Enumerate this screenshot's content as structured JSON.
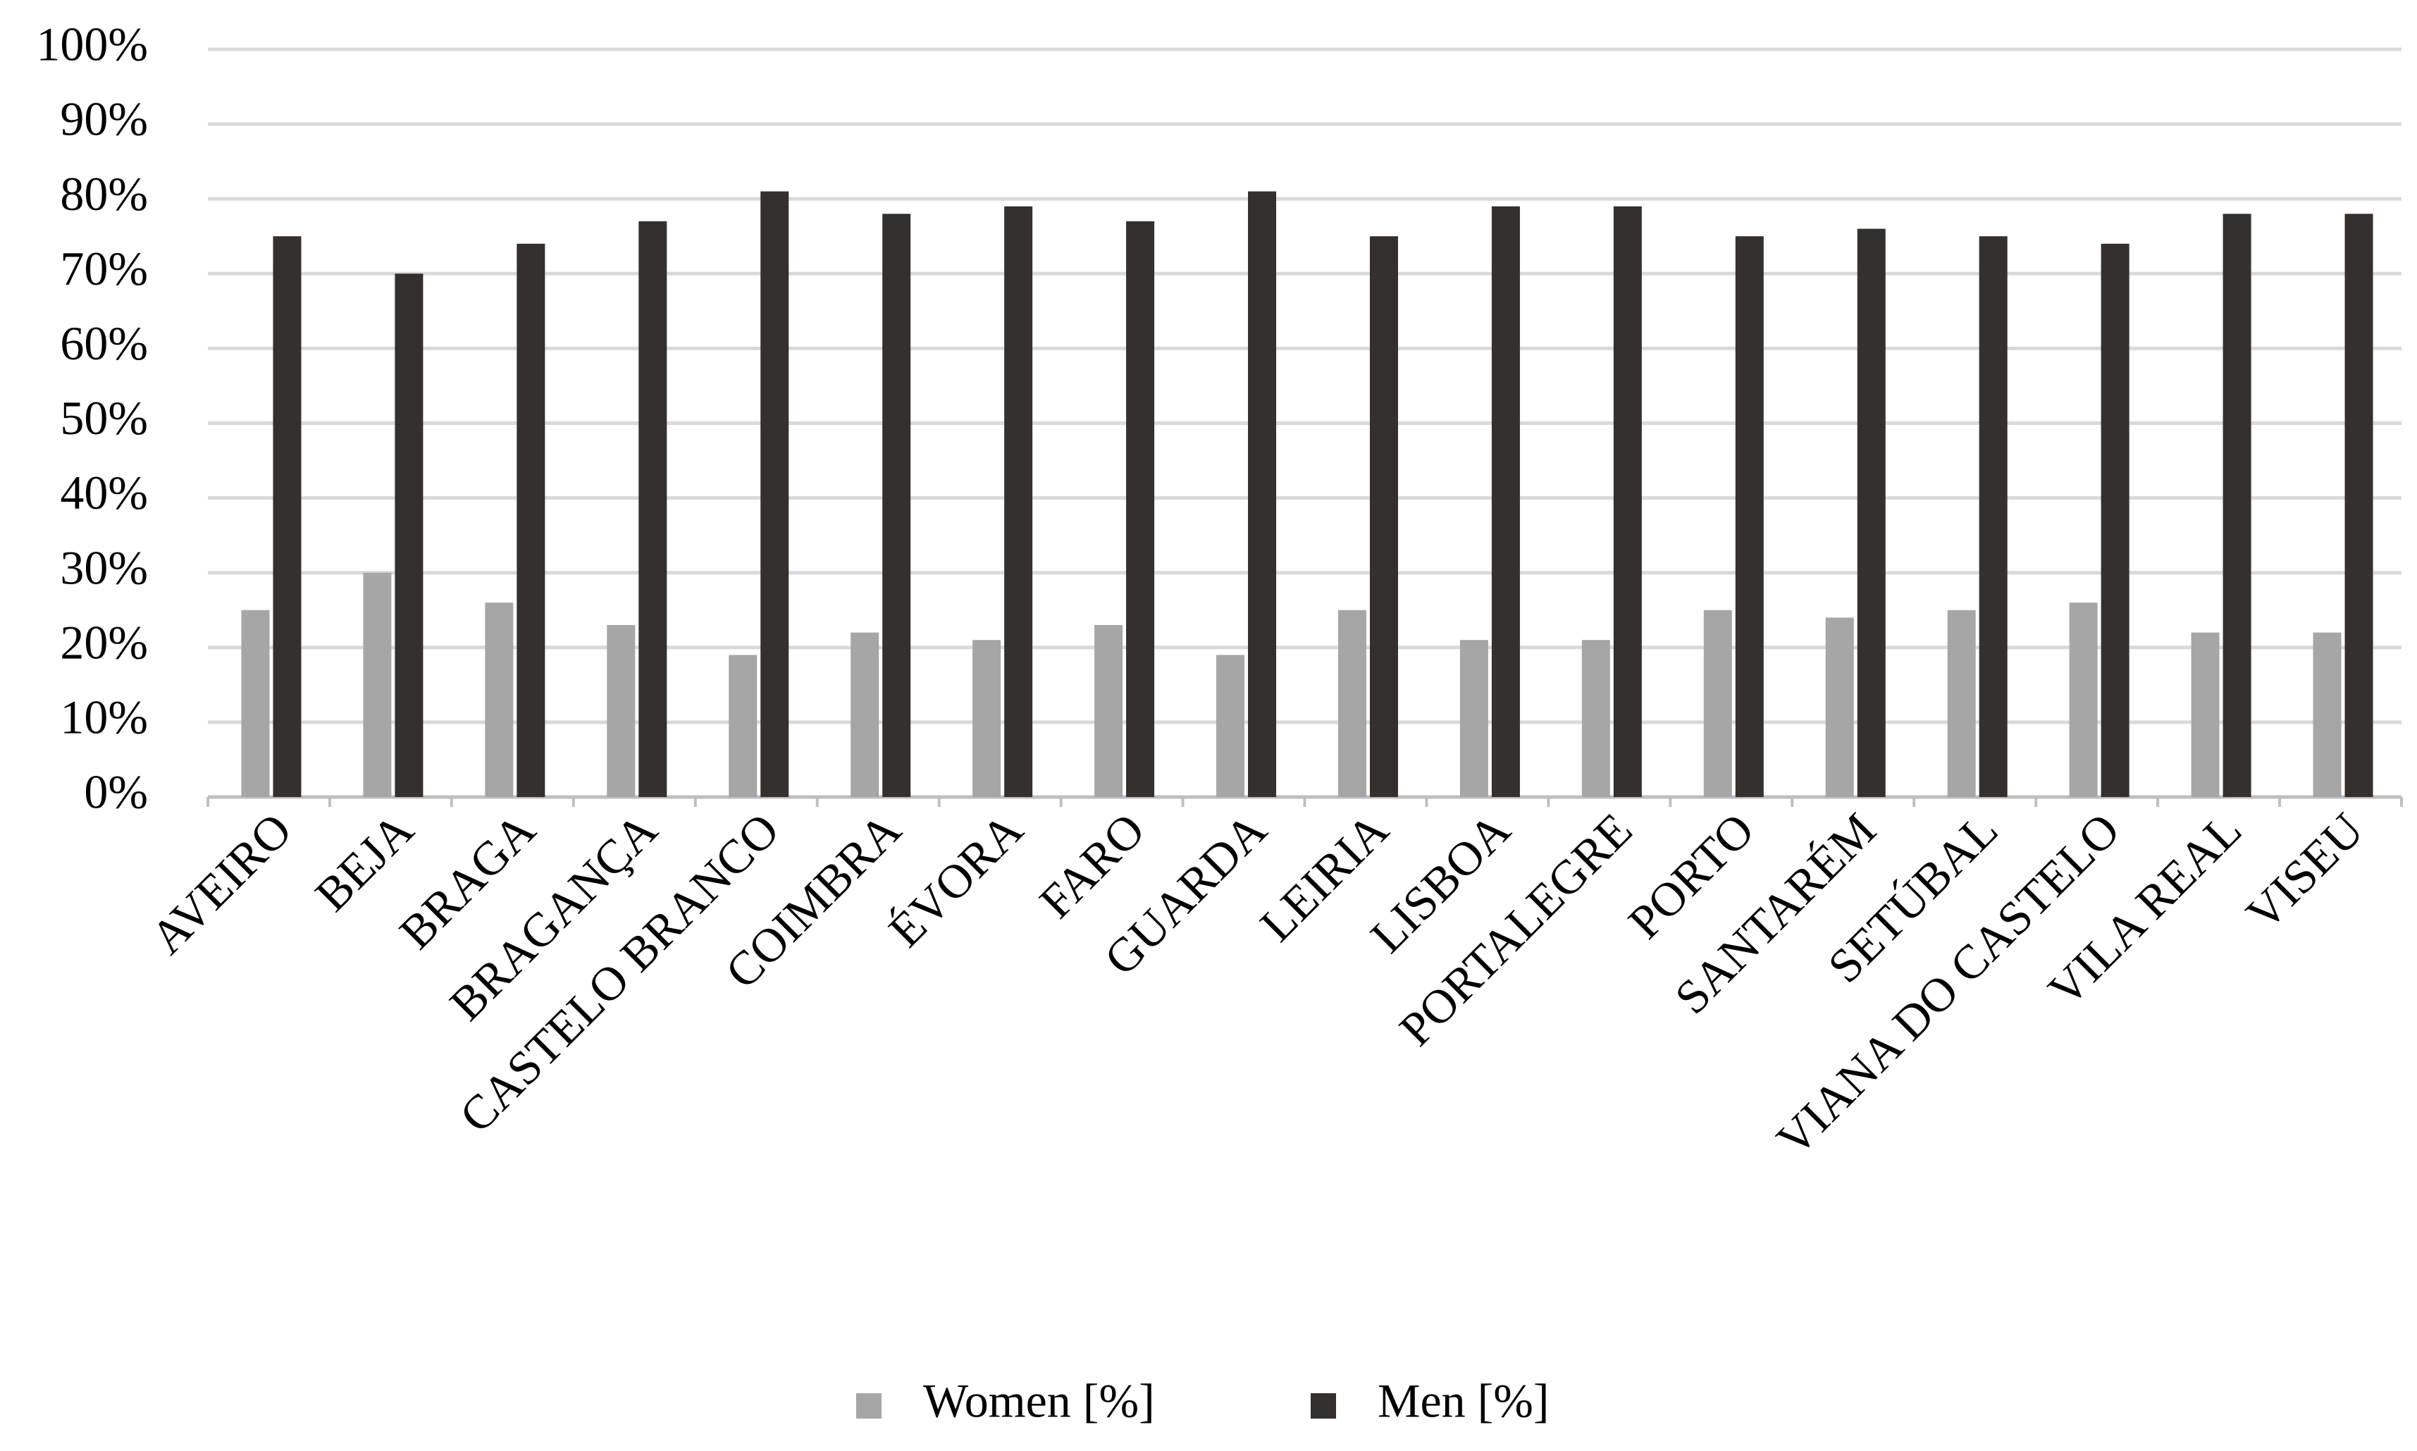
{
  "chart_data": {
    "type": "bar",
    "categories": [
      "AVEIRO",
      "BEJA",
      "BRAGA",
      "BRAGANÇA",
      "CASTELO BRANCO",
      "COIMBRA",
      "ÉVORA",
      "FARO",
      "GUARDA",
      "LEIRIA",
      "LISBOA",
      "PORTALEGRE",
      "PORTO",
      "SANTARÉM",
      "SETÚBAL",
      "VIANA DO CASTELO",
      "VILA REAL",
      "VISEU"
    ],
    "series": [
      {
        "name": "Women [%]",
        "color": "#a6a6a6",
        "values": [
          25,
          30,
          26,
          23,
          19,
          22,
          21,
          23,
          19,
          25,
          21,
          21,
          25,
          24,
          25,
          26,
          22,
          22
        ]
      },
      {
        "name": "Men [%]",
        "color": "#33302e",
        "values": [
          75,
          70,
          74,
          77,
          81,
          78,
          79,
          77,
          81,
          75,
          79,
          79,
          75,
          76,
          75,
          74,
          78,
          78
        ]
      }
    ],
    "ylim": [
      0,
      100
    ],
    "yticks": [
      {
        "value": 0,
        "label": "0%"
      },
      {
        "value": 10,
        "label": "10%"
      },
      {
        "value": 20,
        "label": "20%"
      },
      {
        "value": 30,
        "label": "30%"
      },
      {
        "value": 40,
        "label": "40%"
      },
      {
        "value": 50,
        "label": "50%"
      },
      {
        "value": 60,
        "label": "60%"
      },
      {
        "value": 70,
        "label": "70%"
      },
      {
        "value": 80,
        "label": "80%"
      },
      {
        "value": 90,
        "label": "90%"
      },
      {
        "value": 100,
        "label": "100%"
      }
    ],
    "grid": true,
    "legend": "bottom"
  }
}
